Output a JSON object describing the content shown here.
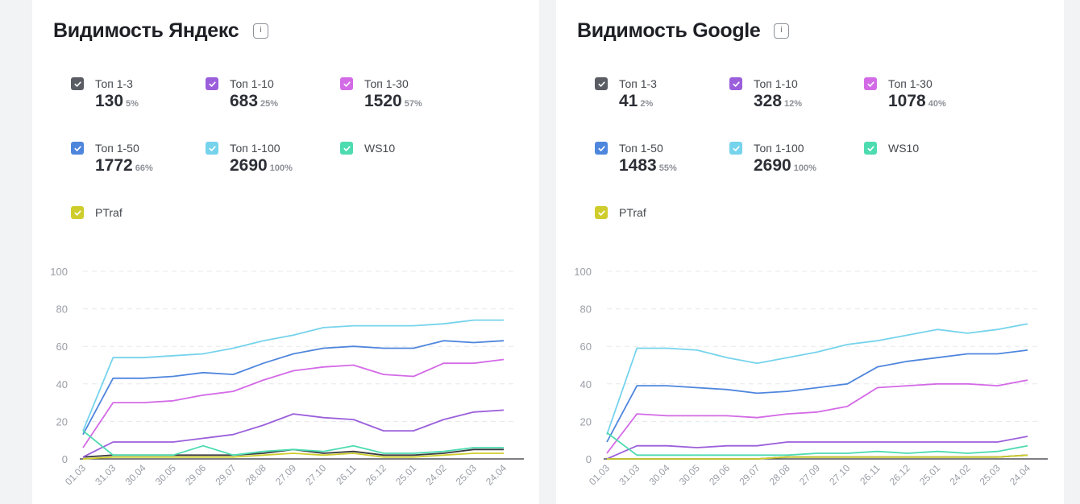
{
  "chart_data": [
    {
      "type": "line",
      "title": "Видимость Яндекс",
      "info_icon": "i",
      "xlabel": "",
      "ylabel": "",
      "ylim": [
        0,
        100
      ],
      "yticks": [
        0,
        20,
        40,
        60,
        80,
        100
      ],
      "grid": true,
      "categories": [
        "01.03",
        "31.03",
        "30.04",
        "30.05",
        "29.06",
        "29.07",
        "28.08",
        "27.09",
        "27.10",
        "26.11",
        "26.12",
        "25.01",
        "24.02",
        "25.03",
        "24.04"
      ],
      "legend": [
        {
          "label": "Топ 1-3",
          "value": "130",
          "pct": "5%",
          "color": "#5a5d63"
        },
        {
          "label": "Топ 1-10",
          "value": "683",
          "pct": "25%",
          "color": "#9b5fdb"
        },
        {
          "label": "Топ 1-30",
          "value": "1520",
          "pct": "57%",
          "color": "#d36ae6"
        },
        {
          "label": "Топ 1-50",
          "value": "1772",
          "pct": "66%",
          "color": "#4f86dd"
        },
        {
          "label": "Топ 1-100",
          "value": "2690",
          "pct": "100%",
          "color": "#76d3ec"
        },
        {
          "label": "WS10",
          "value": "",
          "pct": "",
          "color": "#4ddbb0"
        },
        {
          "label": "PTraf",
          "value": "",
          "pct": "",
          "color": "#cfcd2c"
        }
      ],
      "series": [
        {
          "values": [
            1,
            2,
            2,
            2,
            2,
            2,
            3,
            5,
            3,
            4,
            2,
            2,
            3,
            5,
            5
          ],
          "color": "#3a3b40"
        },
        {
          "values": [
            1,
            9,
            9,
            9,
            11,
            13,
            18,
            24,
            22,
            21,
            15,
            15,
            21,
            25,
            26
          ],
          "color": "#9b5fdb"
        },
        {
          "values": [
            6,
            30,
            30,
            31,
            34,
            36,
            42,
            47,
            49,
            50,
            45,
            44,
            51,
            51,
            53
          ],
          "color": "#d36ae6"
        },
        {
          "values": [
            13,
            43,
            43,
            44,
            46,
            45,
            51,
            56,
            59,
            60,
            59,
            59,
            63,
            62,
            63
          ],
          "color": "#4f86dd"
        },
        {
          "values": [
            15,
            54,
            54,
            55,
            56,
            59,
            63,
            66,
            70,
            71,
            71,
            71,
            72,
            74,
            74
          ],
          "color": "#76d3ec"
        },
        {
          "values": [
            15,
            2,
            2,
            2,
            7,
            2,
            4,
            5,
            4,
            7,
            3,
            3,
            4,
            6,
            6
          ],
          "color": "#4ddbb0"
        },
        {
          "values": [
            0,
            1,
            1,
            1,
            1,
            1,
            2,
            3,
            2,
            3,
            1,
            1,
            2,
            3,
            3
          ],
          "color": "#cfcd2c"
        }
      ]
    },
    {
      "type": "line",
      "title": "Видимость Google",
      "info_icon": "i",
      "xlabel": "",
      "ylabel": "",
      "ylim": [
        0,
        100
      ],
      "yticks": [
        0,
        20,
        40,
        60,
        80,
        100
      ],
      "grid": true,
      "categories": [
        "01.03",
        "31.03",
        "30.04",
        "30.05",
        "29.06",
        "29.07",
        "28.08",
        "27.09",
        "27.10",
        "26.11",
        "26.12",
        "25.01",
        "24.02",
        "25.03",
        "24.04"
      ],
      "legend": [
        {
          "label": "Топ 1-3",
          "value": "41",
          "pct": "2%",
          "color": "#5a5d63"
        },
        {
          "label": "Топ 1-10",
          "value": "328",
          "pct": "12%",
          "color": "#9b5fdb"
        },
        {
          "label": "Топ 1-30",
          "value": "1078",
          "pct": "40%",
          "color": "#d36ae6"
        },
        {
          "label": "Топ 1-50",
          "value": "1483",
          "pct": "55%",
          "color": "#4f86dd"
        },
        {
          "label": "Топ 1-100",
          "value": "2690",
          "pct": "100%",
          "color": "#76d3ec"
        },
        {
          "label": "WS10",
          "value": "",
          "pct": "",
          "color": "#4ddbb0"
        },
        {
          "label": "PTraf",
          "value": "",
          "pct": "",
          "color": "#cfcd2c"
        }
      ],
      "series": [
        {
          "values": [
            0,
            0,
            0,
            0,
            0,
            0,
            1,
            1,
            1,
            1,
            1,
            1,
            1,
            1,
            2
          ],
          "color": "#3a3b40"
        },
        {
          "values": [
            0,
            7,
            7,
            6,
            7,
            7,
            9,
            9,
            9,
            9,
            9,
            9,
            9,
            9,
            12
          ],
          "color": "#9b5fdb"
        },
        {
          "values": [
            3,
            24,
            23,
            23,
            23,
            22,
            24,
            25,
            28,
            38,
            39,
            40,
            40,
            39,
            42
          ],
          "color": "#d36ae6"
        },
        {
          "values": [
            9,
            39,
            39,
            38,
            37,
            35,
            36,
            38,
            40,
            49,
            52,
            54,
            56,
            56,
            58
          ],
          "color": "#4f86dd"
        },
        {
          "values": [
            13,
            59,
            59,
            58,
            54,
            51,
            54,
            57,
            61,
            63,
            66,
            69,
            67,
            69,
            72
          ],
          "color": "#76d3ec"
        },
        {
          "values": [
            14,
            2,
            2,
            2,
            2,
            2,
            2,
            3,
            3,
            4,
            3,
            4,
            3,
            4,
            7
          ],
          "color": "#4ddbb0"
        },
        {
          "values": [
            0,
            0,
            0,
            0,
            0,
            0,
            1,
            1,
            1,
            1,
            1,
            1,
            1,
            1,
            2
          ],
          "color": "#cfcd2c"
        }
      ]
    }
  ]
}
